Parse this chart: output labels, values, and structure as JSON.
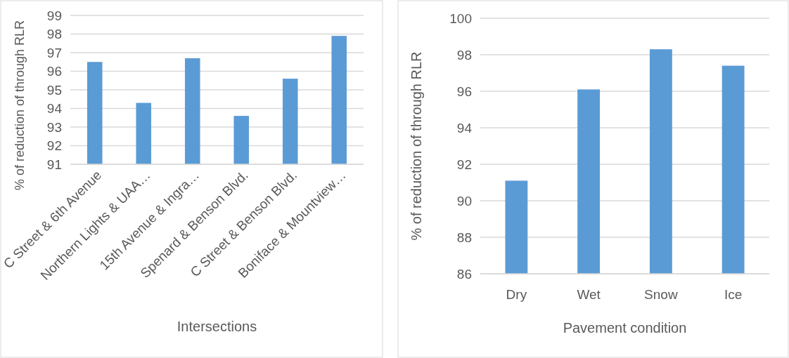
{
  "chart_data": [
    {
      "type": "bar",
      "xlabel": "Intersections",
      "ylabel": "% of reduction of through RLR",
      "categories": [
        "C Street & 6th Avenue",
        "Northern Lights & UAA…",
        "15th Avenue & Ingra…",
        "Spenard & Benson Blvd.",
        "C Street & Benson Blvd.",
        "Boniface & Mountview…"
      ],
      "values": [
        96.5,
        94.3,
        96.7,
        93.6,
        95.6,
        97.9
      ],
      "color": "#5b9bd5",
      "ylim": [
        91,
        99
      ],
      "yticks": [
        91,
        92,
        93,
        94,
        95,
        96,
        97,
        98,
        99
      ],
      "grid": "y"
    },
    {
      "type": "bar",
      "xlabel": "Pavement condition",
      "ylabel": "% of reduction of through RLR",
      "categories": [
        "Dry",
        "Wet",
        "Snow",
        "Ice"
      ],
      "values": [
        91.1,
        96.1,
        98.3,
        97.4
      ],
      "color": "#5b9bd5",
      "ylim": [
        86,
        100
      ],
      "yticks": [
        86,
        88,
        90,
        92,
        94,
        96,
        98,
        100
      ],
      "grid": "y"
    }
  ]
}
